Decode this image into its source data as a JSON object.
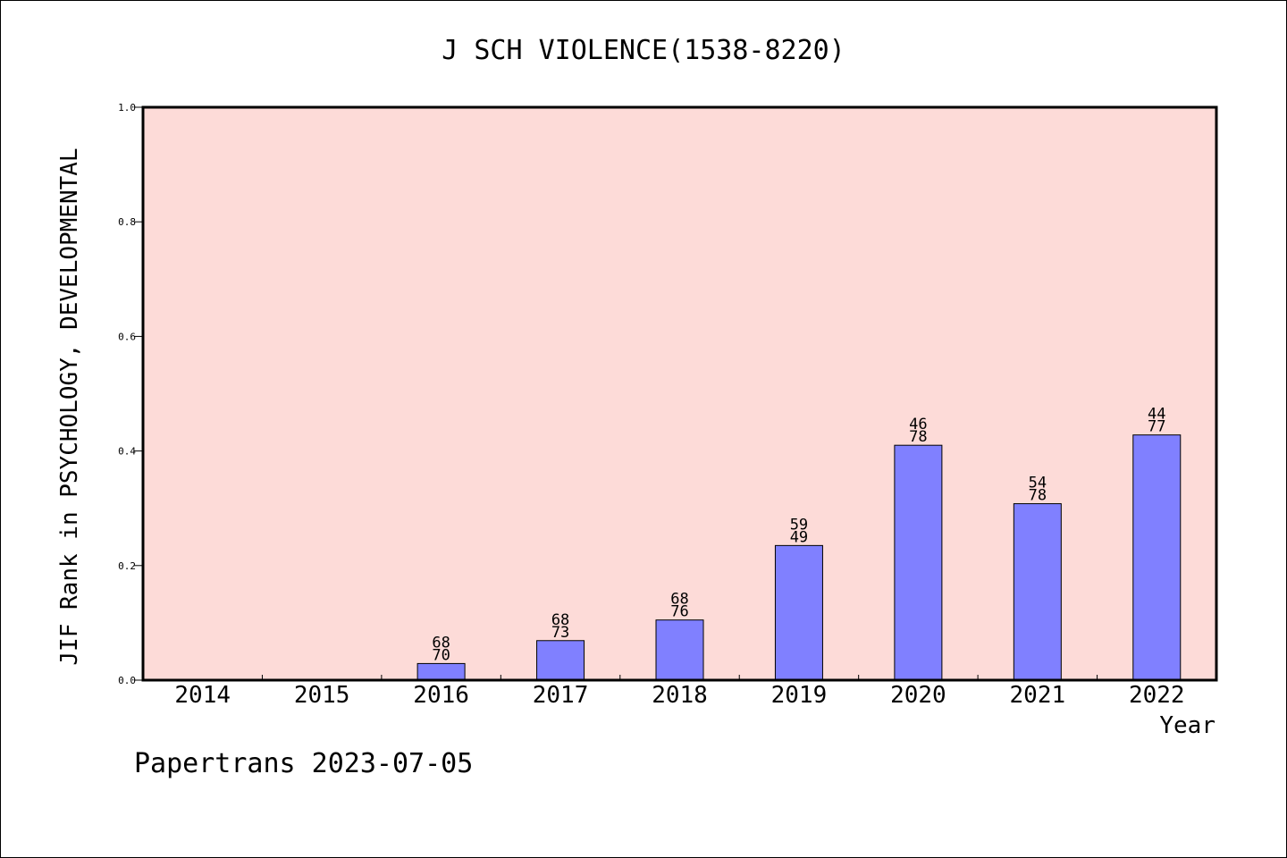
{
  "chart_data": {
    "type": "bar",
    "title": "J SCH VIOLENCE(1538-8220)",
    "xlabel": "Year",
    "ylabel": "JIF Rank in PSYCHOLOGY, DEVELOPMENTAL",
    "ylim": [
      0,
      1.0
    ],
    "yticks": [
      "0.0",
      "0.2",
      "0.4",
      "0.6",
      "0.8",
      "1.0"
    ],
    "categories": [
      "2014",
      "2015",
      "2016",
      "2017",
      "2018",
      "2019",
      "2020",
      "2021",
      "2022"
    ],
    "values": [
      null,
      null,
      0.029,
      0.069,
      0.105,
      0.235,
      0.41,
      0.308,
      0.428
    ],
    "label_top": [
      "",
      "",
      "68",
      "68",
      "68",
      "59",
      "46",
      "54",
      "44"
    ],
    "label_bottom": [
      "",
      "",
      "70",
      "73",
      "76",
      "49",
      "78",
      "78",
      "77"
    ],
    "plot_background": "#fddbd8",
    "bar_color": "#8080ff",
    "grid": false
  },
  "footer": "Papertrans 2023-07-05"
}
